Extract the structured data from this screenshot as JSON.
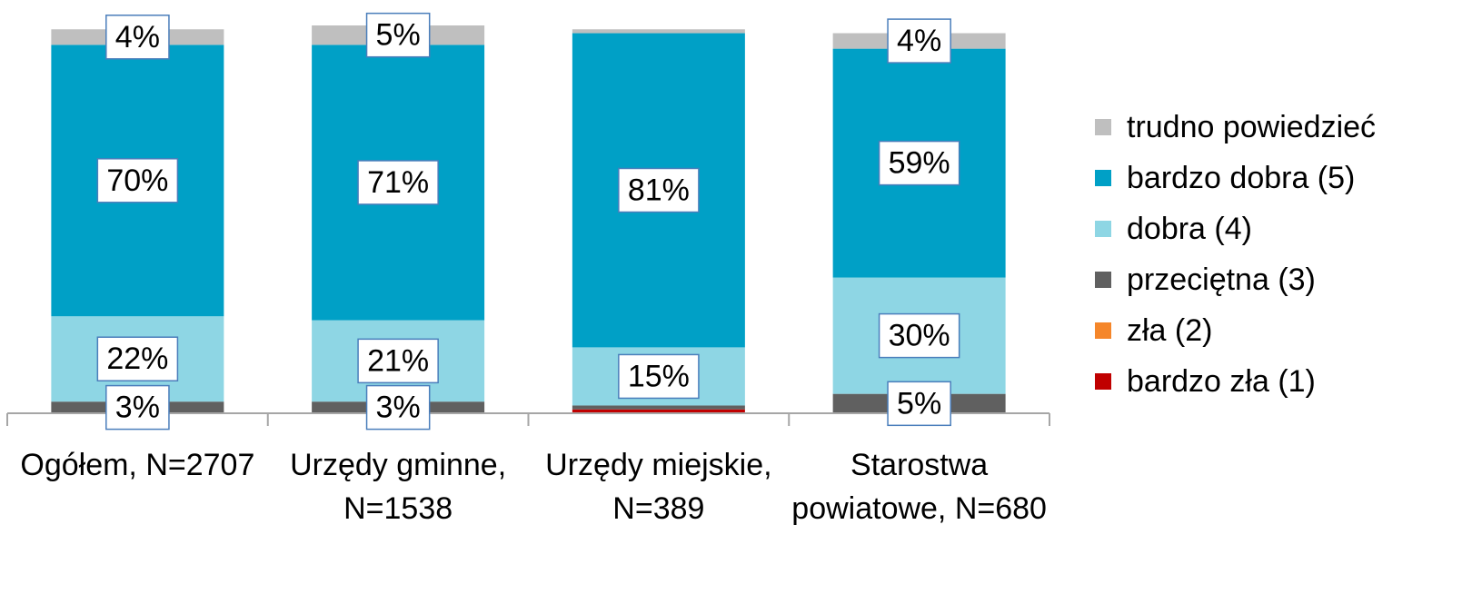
{
  "chart_data": {
    "type": "stacked_bar",
    "categories": [
      "Ogółem, N=2707",
      "Urzędy gminne, N=1538",
      "Urzędy miejskie, N=389",
      "Starostwa powiatowe, N=680"
    ],
    "ylim": [
      0,
      100
    ],
    "series": [
      {
        "name": "trudno powiedzieć",
        "color": "#bfbfbf",
        "values": [
          4,
          5,
          1,
          4
        ],
        "value_labels": [
          "4%",
          "5%",
          null,
          "4%"
        ]
      },
      {
        "name": "bardzo dobra (5)",
        "color": "#00a0c6",
        "values": [
          70,
          71,
          81,
          59
        ],
        "value_labels": [
          "70%",
          "71%",
          "81%",
          "59%"
        ]
      },
      {
        "name": "dobra (4)",
        "color": "#8ed6e4",
        "values": [
          22,
          21,
          15,
          30
        ],
        "value_labels": [
          "22%",
          "21%",
          "15%",
          "30%"
        ]
      },
      {
        "name": "przeciętna (3)",
        "color": "#606060",
        "values": [
          3,
          3,
          1,
          5
        ],
        "value_labels": [
          "3%",
          "3%",
          null,
          "5%"
        ]
      },
      {
        "name": "zła (2)",
        "color": "#f5862a",
        "values": [
          0,
          0,
          0,
          0
        ]
      },
      {
        "name": "bardzo zła (1)",
        "color": "#c00000",
        "values": [
          0,
          0,
          1,
          0
        ]
      }
    ]
  }
}
